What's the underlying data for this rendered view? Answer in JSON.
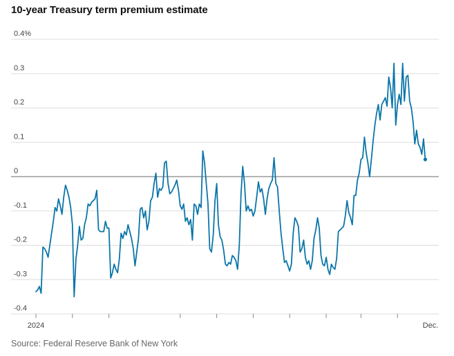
{
  "title": "10-year Treasury term premium estimate",
  "source": "Source: Federal Reserve Bank of New York",
  "colors": {
    "line": "#0a75a8",
    "grid": "#dddddd",
    "zero": "#888888",
    "tick": "#888888"
  },
  "chart_data": {
    "type": "line",
    "title": "10-year Treasury term premium estimate",
    "xlabel": "",
    "ylabel": "",
    "y_ticks": [
      {
        "value": 0.4,
        "label": "0.4%"
      },
      {
        "value": 0.3,
        "label": "0.3"
      },
      {
        "value": 0.2,
        "label": "0.2"
      },
      {
        "value": 0.1,
        "label": "0.1"
      },
      {
        "value": 0,
        "label": "0"
      },
      {
        "value": -0.1,
        "label": "-0.1"
      },
      {
        "value": -0.2,
        "label": "-0.2"
      },
      {
        "value": -0.3,
        "label": "-0.3"
      },
      {
        "value": -0.4,
        "label": "-0.4"
      }
    ],
    "ylim": [
      -0.4,
      0.4
    ],
    "x_range": [
      0,
      229
    ],
    "x_tick_positions": [
      0,
      21,
      42,
      83,
      104,
      125,
      146,
      167,
      187,
      208
    ],
    "x_labels": [
      {
        "at": 0,
        "label": "2024"
      },
      {
        "at": 227,
        "label": "Dec."
      }
    ],
    "grid": true,
    "series": [
      {
        "name": "10-year Treasury term premium",
        "values": [
          -0.335,
          -0.33,
          -0.32,
          -0.34,
          -0.205,
          -0.21,
          -0.22,
          -0.235,
          -0.2,
          -0.165,
          -0.13,
          -0.09,
          -0.1,
          -0.065,
          -0.085,
          -0.11,
          -0.06,
          -0.025,
          -0.04,
          -0.06,
          -0.09,
          -0.14,
          -0.35,
          -0.24,
          -0.2,
          -0.145,
          -0.185,
          -0.18,
          -0.14,
          -0.12,
          -0.08,
          -0.085,
          -0.075,
          -0.07,
          -0.065,
          -0.04,
          -0.155,
          -0.16,
          -0.16,
          -0.16,
          -0.13,
          -0.15,
          -0.15,
          -0.295,
          -0.28,
          -0.255,
          -0.27,
          -0.28,
          -0.24,
          -0.165,
          -0.18,
          -0.16,
          -0.17,
          -0.14,
          -0.16,
          -0.18,
          -0.21,
          -0.26,
          -0.22,
          -0.18,
          -0.095,
          -0.09,
          -0.12,
          -0.1,
          -0.155,
          -0.13,
          -0.07,
          -0.06,
          -0.02,
          0.01,
          -0.06,
          -0.035,
          -0.04,
          -0.03,
          0.04,
          0.045,
          -0.02,
          -0.05,
          -0.045,
          -0.035,
          -0.025,
          -0.01,
          -0.04,
          -0.085,
          -0.095,
          -0.08,
          -0.13,
          -0.12,
          -0.14,
          -0.125,
          -0.185,
          -0.08,
          -0.085,
          -0.11,
          -0.08,
          -0.09,
          0.075,
          0.04,
          -0.02,
          -0.08,
          -0.21,
          -0.22,
          -0.17,
          -0.07,
          -0.02,
          -0.14,
          -0.175,
          -0.185,
          -0.215,
          -0.255,
          -0.26,
          -0.25,
          -0.255,
          -0.23,
          -0.235,
          -0.245,
          -0.27,
          -0.2,
          -0.05,
          0.03,
          -0.02,
          -0.1,
          -0.085,
          -0.1,
          -0.095,
          -0.115,
          -0.1,
          -0.06,
          -0.015,
          -0.045,
          -0.035,
          -0.065,
          -0.11,
          -0.065,
          -0.035,
          -0.02,
          -0.01,
          0.055,
          -0.02,
          -0.03,
          -0.1,
          -0.165,
          -0.21,
          -0.25,
          -0.245,
          -0.26,
          -0.275,
          -0.255,
          -0.165,
          -0.12,
          -0.13,
          -0.145,
          -0.22,
          -0.21,
          -0.185,
          -0.235,
          -0.255,
          -0.245,
          -0.27,
          -0.245,
          -0.18,
          -0.155,
          -0.12,
          -0.15,
          -0.23,
          -0.255,
          -0.26,
          -0.235,
          -0.27,
          -0.285,
          -0.255,
          -0.265,
          -0.27,
          -0.24,
          -0.16,
          -0.155,
          -0.15,
          -0.145,
          -0.115,
          -0.07,
          -0.105,
          -0.12,
          -0.14,
          -0.055,
          -0.055,
          -0.01,
          0.01,
          0.05,
          0.055,
          0.115,
          0.07,
          0.04,
          0.0,
          0.05,
          0.105,
          0.15,
          0.185,
          0.21,
          0.165,
          0.21,
          0.22,
          0.23,
          0.205,
          0.29,
          0.26,
          0.2,
          0.33,
          0.15,
          0.21,
          0.24,
          0.21,
          0.33,
          0.22,
          0.29,
          0.295,
          0.22,
          0.2,
          0.16,
          0.095,
          0.135,
          0.095,
          0.085,
          0.065,
          0.11,
          0.05
        ]
      }
    ]
  }
}
